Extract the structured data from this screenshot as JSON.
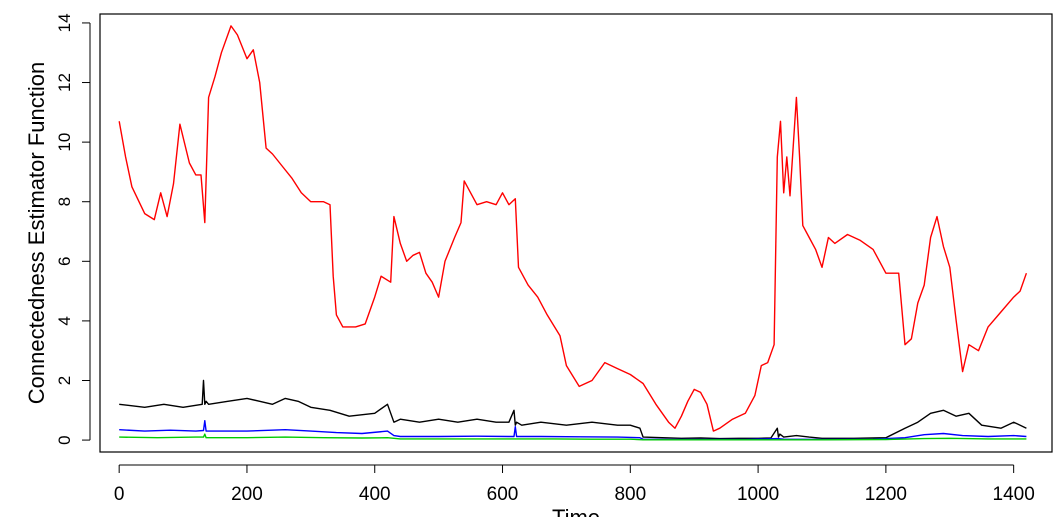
{
  "chart_data": {
    "type": "line",
    "title": "",
    "xlabel": "Time",
    "ylabel": "Connectedness Estimator Function",
    "xlim": [
      -30,
      1460
    ],
    "ylim": [
      -0.4,
      14.3
    ],
    "xticks": [
      0,
      200,
      400,
      600,
      800,
      1000,
      1200,
      1400
    ],
    "xtick_labels": [
      "0",
      "200",
      "400",
      "600",
      "800",
      "1000",
      "1200",
      "1400"
    ],
    "yticks": [
      0,
      2,
      4,
      6,
      8,
      10,
      12,
      14
    ],
    "ytick_labels": [
      "0",
      "2",
      "4",
      "6",
      "8",
      "10",
      "12",
      "14"
    ],
    "grid": false,
    "legend": "none",
    "series": [
      {
        "color": "#ff0000",
        "x": [
          0,
          10,
          20,
          40,
          55,
          65,
          75,
          85,
          95,
          110,
          120,
          128,
          134,
          140,
          150,
          160,
          175,
          185,
          200,
          210,
          220,
          230,
          240,
          255,
          270,
          285,
          300,
          320,
          330,
          335,
          340,
          350,
          370,
          385,
          400,
          410,
          425,
          430,
          440,
          450,
          460,
          470,
          480,
          490,
          500,
          510,
          525,
          535,
          540,
          550,
          560,
          575,
          590,
          600,
          610,
          620,
          625,
          640,
          655,
          670,
          690,
          700,
          720,
          740,
          760,
          780,
          800,
          820,
          840,
          860,
          870,
          880,
          890,
          900,
          910,
          920,
          930,
          940,
          960,
          980,
          995,
          1005,
          1015,
          1025,
          1030,
          1035,
          1040,
          1045,
          1050,
          1060,
          1065,
          1070,
          1080,
          1090,
          1100,
          1110,
          1120,
          1140,
          1160,
          1180,
          1200,
          1220,
          1230,
          1240,
          1250,
          1260,
          1270,
          1280,
          1290,
          1300,
          1310,
          1320,
          1330,
          1345,
          1360,
          1380,
          1400,
          1410,
          1420
        ],
        "y": [
          10.7,
          9.5,
          8.5,
          7.6,
          7.4,
          8.3,
          7.5,
          8.6,
          10.6,
          9.3,
          8.9,
          8.9,
          7.3,
          11.5,
          12.2,
          13.0,
          13.9,
          13.6,
          12.8,
          13.1,
          12.0,
          9.8,
          9.6,
          9.2,
          8.8,
          8.3,
          8.0,
          8.0,
          7.9,
          5.5,
          4.2,
          3.8,
          3.8,
          3.9,
          4.8,
          5.5,
          5.3,
          7.5,
          6.6,
          6.0,
          6.2,
          6.3,
          5.6,
          5.3,
          4.8,
          6.0,
          6.8,
          7.3,
          8.7,
          8.3,
          7.9,
          8.0,
          7.9,
          8.3,
          7.9,
          8.1,
          5.8,
          5.2,
          4.8,
          4.2,
          3.5,
          2.5,
          1.8,
          2.0,
          2.6,
          2.4,
          2.2,
          1.9,
          1.2,
          0.6,
          0.4,
          0.8,
          1.3,
          1.7,
          1.6,
          1.2,
          0.3,
          0.4,
          0.7,
          0.9,
          1.5,
          2.5,
          2.6,
          3.2,
          9.5,
          10.7,
          8.3,
          9.5,
          8.2,
          11.5,
          9.5,
          7.2,
          6.8,
          6.4,
          5.8,
          6.8,
          6.6,
          6.9,
          6.7,
          6.4,
          5.6,
          5.6,
          3.2,
          3.4,
          4.6,
          5.2,
          6.8,
          7.5,
          6.5,
          5.8,
          4.0,
          2.3,
          3.2,
          3.0,
          3.8,
          4.3,
          4.8,
          5.0,
          5.6
        ]
      },
      {
        "color": "#000000",
        "x": [
          0,
          40,
          70,
          100,
          130,
          132,
          134,
          136,
          140,
          170,
          200,
          220,
          240,
          260,
          280,
          300,
          330,
          360,
          400,
          420,
          430,
          440,
          470,
          500,
          530,
          560,
          590,
          610,
          618,
          620,
          622,
          630,
          660,
          700,
          740,
          780,
          800,
          815,
          820,
          850,
          880,
          910,
          940,
          970,
          1000,
          1020,
          1030,
          1032,
          1034,
          1040,
          1060,
          1080,
          1100,
          1150,
          1200,
          1230,
          1250,
          1270,
          1290,
          1310,
          1330,
          1350,
          1380,
          1400,
          1420
        ],
        "y": [
          1.2,
          1.1,
          1.2,
          1.1,
          1.2,
          2.0,
          1.2,
          1.3,
          1.2,
          1.3,
          1.4,
          1.3,
          1.2,
          1.4,
          1.3,
          1.1,
          1.0,
          0.8,
          0.9,
          1.2,
          0.6,
          0.7,
          0.6,
          0.7,
          0.6,
          0.7,
          0.6,
          0.6,
          1.0,
          0.5,
          0.6,
          0.5,
          0.6,
          0.5,
          0.6,
          0.5,
          0.5,
          0.4,
          0.1,
          0.08,
          0.06,
          0.07,
          0.05,
          0.06,
          0.06,
          0.07,
          0.4,
          0.1,
          0.2,
          0.1,
          0.15,
          0.1,
          0.06,
          0.06,
          0.08,
          0.4,
          0.6,
          0.9,
          1.0,
          0.8,
          0.9,
          0.5,
          0.4,
          0.6,
          0.4
        ]
      },
      {
        "color": "#0000ff",
        "x": [
          0,
          40,
          80,
          120,
          132,
          134,
          136,
          150,
          200,
          260,
          300,
          340,
          380,
          420,
          430,
          440,
          500,
          560,
          610,
          618,
          620,
          622,
          660,
          720,
          780,
          815,
          820,
          860,
          920,
          980,
          1030,
          1040,
          1100,
          1180,
          1230,
          1260,
          1290,
          1320,
          1360,
          1400,
          1420
        ],
        "y": [
          0.35,
          0.3,
          0.33,
          0.3,
          0.32,
          0.65,
          0.3,
          0.3,
          0.3,
          0.35,
          0.3,
          0.25,
          0.22,
          0.3,
          0.15,
          0.12,
          0.12,
          0.13,
          0.12,
          0.12,
          0.45,
          0.12,
          0.12,
          0.11,
          0.1,
          0.08,
          0.03,
          0.02,
          0.02,
          0.02,
          0.05,
          0.03,
          0.02,
          0.03,
          0.08,
          0.18,
          0.22,
          0.15,
          0.12,
          0.15,
          0.12
        ]
      },
      {
        "color": "#00cc00",
        "x": [
          0,
          60,
          120,
          132,
          134,
          136,
          200,
          260,
          320,
          380,
          420,
          440,
          500,
          560,
          620,
          680,
          740,
          800,
          820,
          900,
          1000,
          1100,
          1200,
          1260,
          1300,
          1360,
          1420
        ],
        "y": [
          0.1,
          0.08,
          0.1,
          0.1,
          0.2,
          0.08,
          0.08,
          0.1,
          0.08,
          0.07,
          0.08,
          0.04,
          0.04,
          0.04,
          0.04,
          0.04,
          0.03,
          0.03,
          0.01,
          0.01,
          0.01,
          0.01,
          0.02,
          0.05,
          0.06,
          0.04,
          0.04
        ]
      }
    ]
  }
}
